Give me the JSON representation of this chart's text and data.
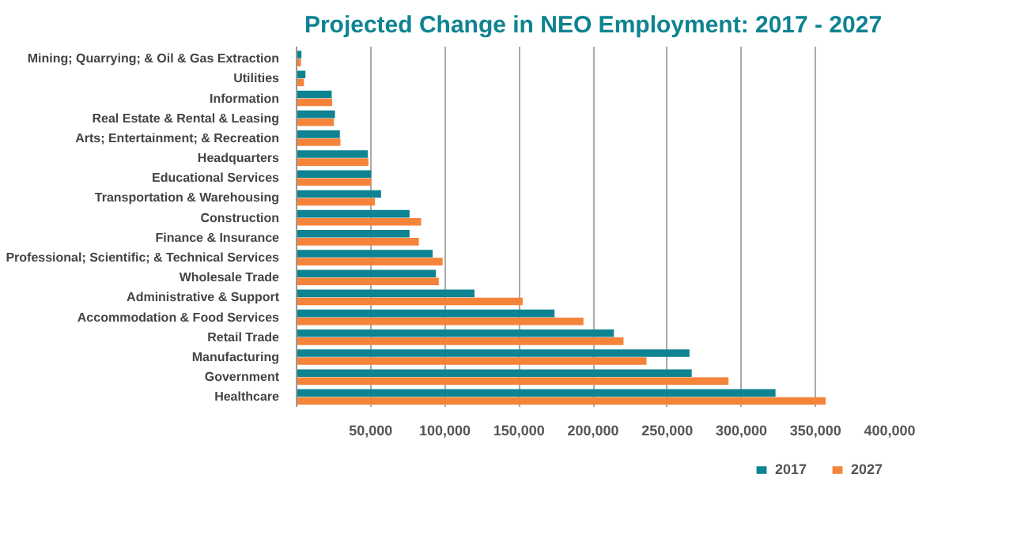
{
  "chart_data": {
    "type": "bar",
    "orientation": "horizontal",
    "title": "Projected Change in NEO Employment: 2017 - 2027",
    "categories": [
      "Mining; Quarrying; & Oil & Gas Extraction",
      "Utilities",
      "Information",
      "Real Estate & Rental & Leasing",
      "Arts; Entertainment; & Recreation",
      "Headquarters",
      "Educational Services",
      "Transportation & Warehousing",
      "Construction",
      "Finance & Insurance",
      "Professional; Scientific; & Technical Services",
      "Wholesale Trade",
      "Administrative & Support",
      "Accommodation & Food Services",
      "Retail Trade",
      "Manufacturing",
      "Government",
      "Healthcare"
    ],
    "series": [
      {
        "name": "2017",
        "color": "#0e8391",
        "values": [
          3300,
          6000,
          23700,
          25900,
          29200,
          48100,
          50300,
          57000,
          76200,
          76200,
          91800,
          94000,
          120000,
          174000,
          214000,
          265000,
          266500,
          323000
        ]
      },
      {
        "name": "2027",
        "color": "#f5843a",
        "values": [
          3000,
          5000,
          24000,
          25200,
          29600,
          48500,
          50300,
          52900,
          84000,
          82500,
          98500,
          95900,
          152500,
          193500,
          220500,
          236000,
          291300,
          356800
        ]
      }
    ],
    "xlim": [
      0,
      400000
    ],
    "xticks": [
      {
        "value": 0,
        "label": null
      },
      {
        "value": 50000,
        "label": "50,000"
      },
      {
        "value": 100000,
        "label": "100,000"
      },
      {
        "value": 150000,
        "label": "150,000"
      },
      {
        "value": 200000,
        "label": "200,000"
      },
      {
        "value": 250000,
        "label": "250,000"
      },
      {
        "value": 300000,
        "label": "300,000"
      },
      {
        "value": 350000,
        "label": "350,000"
      },
      {
        "value": 400000,
        "label": "400,000"
      }
    ],
    "grid": "x",
    "legend": "bottom"
  }
}
